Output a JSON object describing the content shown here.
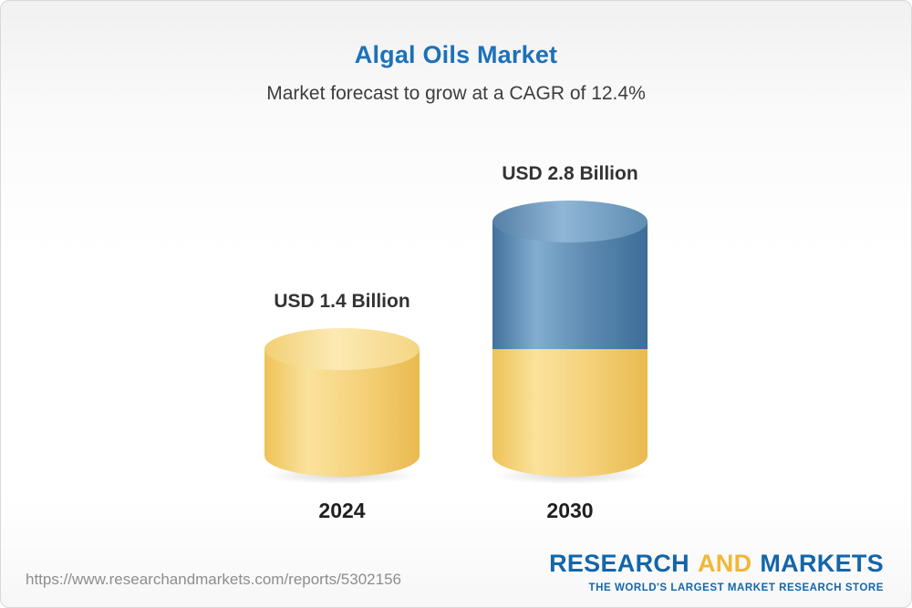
{
  "header": {
    "title": "Algal Oils Market",
    "subtitle": "Market forecast to grow at a CAGR of 12.4%"
  },
  "chart_data": {
    "type": "bar",
    "title": "Algal Oils Market",
    "subtitle": "Market forecast to grow at a CAGR of 12.4%",
    "unit": "USD Billion",
    "cagr_percent": 12.4,
    "categories": [
      "2024",
      "2030"
    ],
    "values": [
      1.4,
      2.8
    ],
    "bars": [
      {
        "category": "2024",
        "value": 1.4,
        "label": "USD 1.4 Billion",
        "segments": [
          {
            "color": "yellow",
            "value": 1.4
          }
        ]
      },
      {
        "category": "2030",
        "value": 2.8,
        "label": "USD 2.8 Billion",
        "segments": [
          {
            "color": "blue",
            "value": 1.4
          },
          {
            "color": "yellow",
            "value": 1.4
          }
        ]
      }
    ],
    "colors": {
      "yellow_bar": "#f6cf6e",
      "blue_bar": "#4d7fa9",
      "title_blue": "#1d71b8",
      "label_dark": "#333333",
      "logo_blue": "#1366a9",
      "logo_gold": "#f2b737"
    },
    "legend_position": "none",
    "grid": false
  },
  "footer": {
    "url": "https://www.researchandmarkets.com/reports/5302156",
    "logo": {
      "research": "RESEARCH",
      "and": "AND",
      "markets": "MARKETS",
      "tagline": "THE WORLD'S LARGEST MARKET RESEARCH STORE"
    }
  }
}
